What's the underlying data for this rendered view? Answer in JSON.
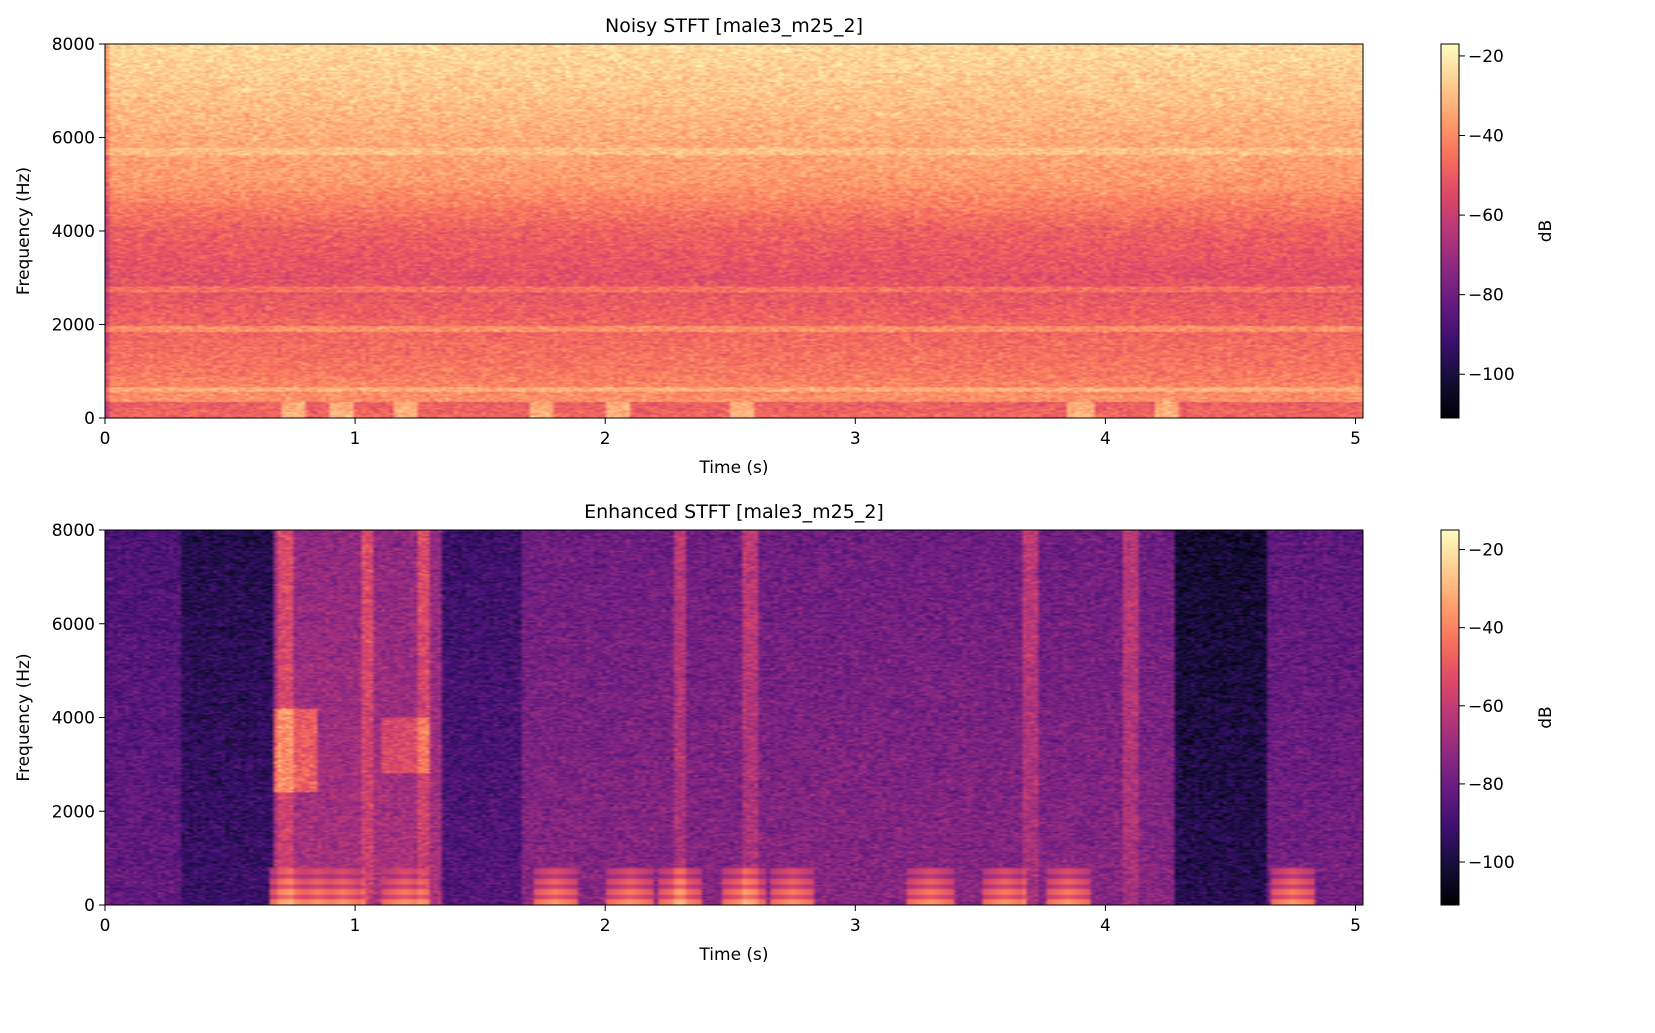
{
  "chart_data": [
    {
      "type": "heatmap",
      "title": "Noisy STFT [male3_m25_2]",
      "xlabel": "Time (s)",
      "ylabel": "Frequency (Hz)",
      "xlim": [
        0,
        5.03
      ],
      "ylim": [
        0,
        8000
      ],
      "xticks": [
        0,
        1,
        2,
        3,
        4,
        5
      ],
      "yticks": [
        0,
        2000,
        4000,
        6000,
        8000
      ],
      "colorbar": {
        "label": "dB",
        "range": [
          -111,
          -17
        ],
        "ticks": [
          -20,
          -40,
          -60,
          -80,
          -100
        ],
        "tick_labels": [
          "−20",
          "−40",
          "−60",
          "−80",
          "−100"
        ],
        "colormap": "magma"
      },
      "base_level_db": [
        -35,
        -44,
        -48,
        -53,
        -49,
        -37,
        -33,
        -28,
        -24
      ],
      "band_level_freqs_hz": [
        0,
        1000,
        2000,
        3000,
        4000,
        5000,
        6000,
        7000,
        8000
      ],
      "bright_bands_hz": [
        1900,
        2750,
        5700,
        600
      ],
      "low_freq_bursts_s": [
        0.75,
        0.95,
        1.2,
        1.75,
        2.05,
        2.55,
        3.9,
        4.25
      ]
    },
    {
      "type": "heatmap",
      "title": "Enhanced STFT [male3_m25_2]",
      "xlabel": "Time (s)",
      "ylabel": "Frequency (Hz)",
      "xlim": [
        0,
        5.03
      ],
      "ylim": [
        0,
        8000
      ],
      "xticks": [
        0,
        1,
        2,
        3,
        4,
        5
      ],
      "yticks": [
        0,
        2000,
        4000,
        6000,
        8000
      ],
      "colorbar": {
        "label": "dB",
        "range": [
          -111,
          -15
        ],
        "ticks": [
          -20,
          -40,
          -60,
          -80,
          -100
        ],
        "tick_labels": [
          "−20",
          "−40",
          "−60",
          "−80",
          "−100"
        ],
        "colormap": "magma"
      },
      "segments_s_db": [
        {
          "start": 0.0,
          "end": 0.3,
          "level": -88
        },
        {
          "start": 0.3,
          "end": 0.68,
          "level": -98
        },
        {
          "start": 0.68,
          "end": 1.35,
          "level": -72
        },
        {
          "start": 1.35,
          "end": 1.67,
          "level": -92
        },
        {
          "start": 1.67,
          "end": 3.12,
          "level": -80
        },
        {
          "start": 3.12,
          "end": 4.28,
          "level": -80
        },
        {
          "start": 4.28,
          "end": 4.65,
          "level": -103
        },
        {
          "start": 4.65,
          "end": 5.03,
          "level": -84
        }
      ],
      "voiced_bursts_s": [
        0.75,
        0.85,
        0.95,
        1.2,
        1.8,
        2.1,
        2.3,
        2.55,
        2.75,
        3.3,
        3.6,
        3.85,
        4.75
      ],
      "onset_streaks_s": [
        0.72,
        1.05,
        1.27,
        2.3,
        2.58,
        3.7,
        4.1
      ]
    }
  ]
}
